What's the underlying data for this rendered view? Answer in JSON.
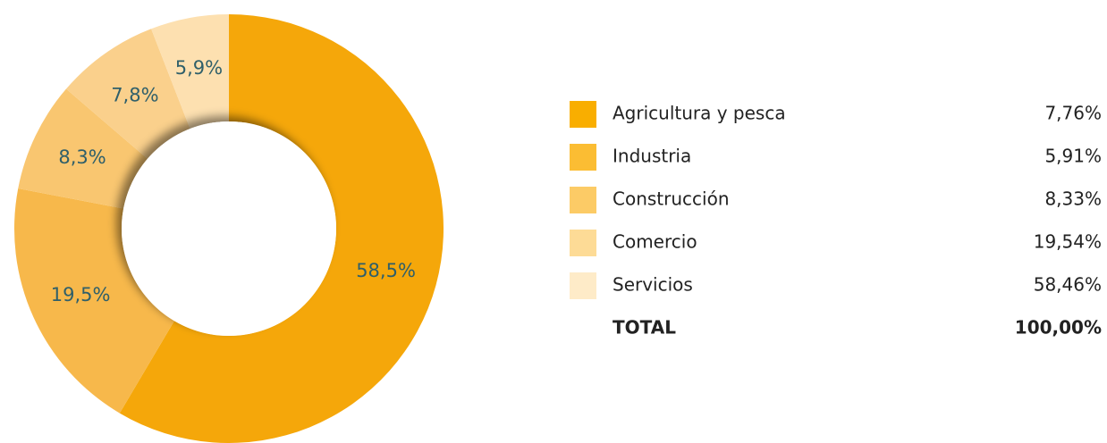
{
  "chart_data": {
    "type": "donut",
    "values": [
      58.5,
      19.5,
      8.3,
      7.8,
      5.9
    ],
    "value_labels": [
      "58,5%",
      "19,5%",
      "8,3%",
      "7,8%",
      "5,9%"
    ],
    "colors": [
      "#f5a70a",
      "#f7b84b",
      "#f9c670",
      "#fad08c",
      "#fde0b0"
    ]
  },
  "legend": {
    "rows": [
      {
        "name": "Agricultura y pesca",
        "color": "#f9ae00",
        "value": "7,76%"
      },
      {
        "name": "Industria",
        "color": "#fbbd33",
        "value": "5,91%"
      },
      {
        "name": "Construcción",
        "color": "#fccb66",
        "value": "8,33%"
      },
      {
        "name": "Comercio",
        "color": "#fddb96",
        "value": "19,54%"
      },
      {
        "name": "Servicios",
        "color": "#feebc8",
        "value": "58,46%"
      }
    ],
    "total": {
      "name": "TOTAL",
      "value": "100,00%"
    }
  }
}
